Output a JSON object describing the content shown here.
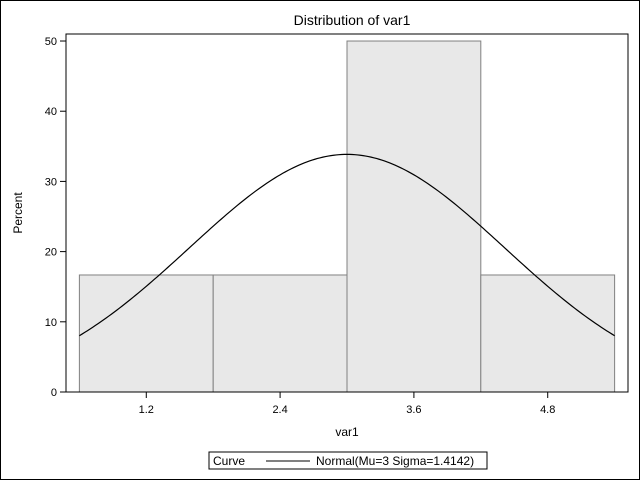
{
  "chart_data": {
    "type": "bar",
    "title": "Distribution of var1",
    "xlabel": "var1",
    "ylabel": "Percent",
    "bins": [
      {
        "from": 0.6,
        "to": 1.8,
        "percent": 16.67
      },
      {
        "from": 1.8,
        "to": 3.0,
        "percent": 16.67
      },
      {
        "from": 3.0,
        "to": 4.2,
        "percent": 50.0
      },
      {
        "from": 4.2,
        "to": 5.4,
        "percent": 16.67
      }
    ],
    "xlim": [
      0.48,
      5.52
    ],
    "ylim": [
      0,
      51
    ],
    "x_ticks": [
      "1.2",
      "2.4",
      "3.6",
      "4.8"
    ],
    "y_ticks": [
      "0",
      "10",
      "20",
      "30",
      "40",
      "50"
    ],
    "curve": {
      "type": "normal",
      "mu": 3,
      "sigma": 1.4142
    },
    "grid": false,
    "bar_fill": "#e8e8e8",
    "bar_stroke": "#808080",
    "curve_color": "#000000",
    "legend": {
      "placement": "bottom-center",
      "title": "Curve",
      "entry": "Normal(Mu=3 Sigma=1.4142)"
    }
  }
}
